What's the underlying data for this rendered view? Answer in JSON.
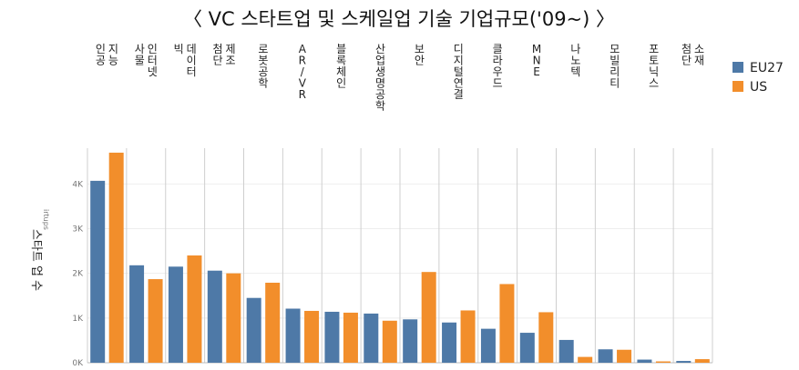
{
  "chart_data": {
    "type": "bar",
    "title": "〈 VC 스타트업 및 스케일업 기술 기업규모('09~) 〉",
    "ylabel": "스타트 업 수",
    "ylabel_fragment": "irtups",
    "ylim": [
      0,
      4800
    ],
    "yticks": [
      0,
      1000,
      2000,
      3000,
      4000
    ],
    "ytick_labels": [
      "0K",
      "1K",
      "2K",
      "3K",
      "4K"
    ],
    "grid": true,
    "legend_position": "right",
    "categories": [
      "인공 지능",
      "사물 인터넷",
      "빅 데이터",
      "첨단 제조",
      "로봇공학",
      "AR/VR",
      "블록체인",
      "산업생명공학",
      "보안",
      "디지털연결",
      "클라우드",
      "MNE",
      "나노텍",
      "모빌리티",
      "포토닉스",
      "첨단 소재"
    ],
    "series": [
      {
        "name": "EU27",
        "color": "#4e79a7",
        "values": [
          4070,
          2180,
          2150,
          2060,
          1450,
          1210,
          1140,
          1100,
          970,
          900,
          760,
          670,
          510,
          300,
          70,
          40
        ]
      },
      {
        "name": "US",
        "color": "#f28e2b",
        "values": [
          4700,
          1870,
          2400,
          2000,
          1790,
          1160,
          1120,
          940,
          2030,
          1170,
          1760,
          1130,
          130,
          290,
          30,
          80
        ]
      }
    ]
  }
}
